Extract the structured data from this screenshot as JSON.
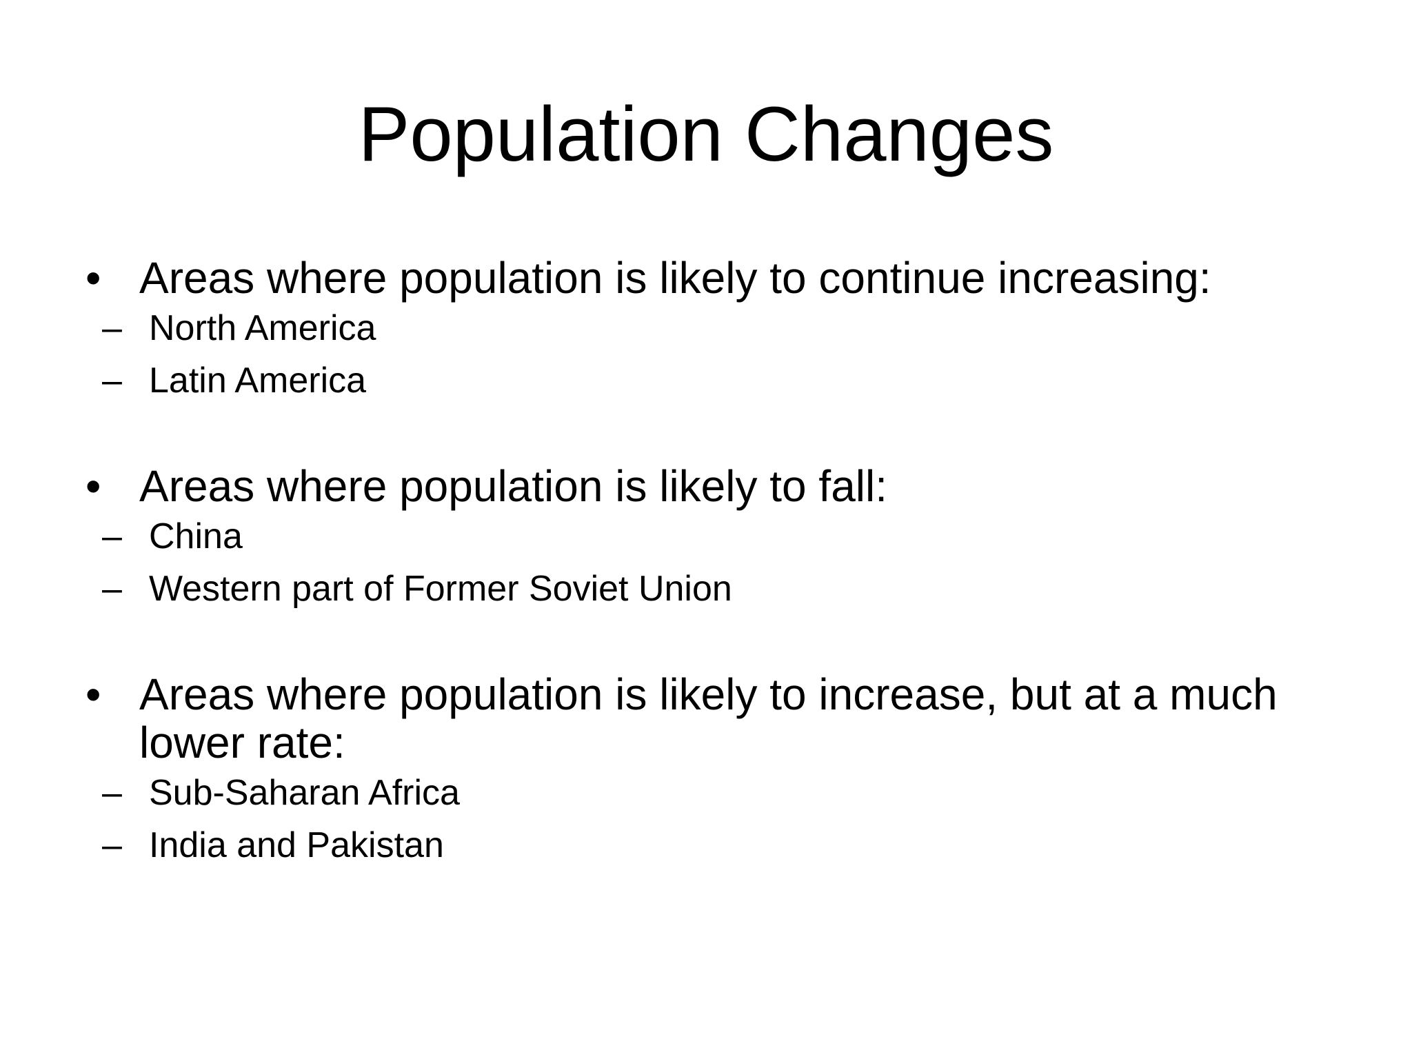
{
  "slide": {
    "title": "Population Changes",
    "bullets": [
      {
        "text": "Areas where population is likely to continue increasing:",
        "sub": [
          "North America",
          "Latin America"
        ]
      },
      {
        "text": "Areas where population is likely to fall:",
        "sub": [
          "China",
          "Western part of Former Soviet Union"
        ]
      },
      {
        "text": "Areas where population is likely to increase, but at a much lower rate:",
        "sub": [
          "Sub-Saharan Africa",
          "India and Pakistan"
        ]
      }
    ],
    "bullet_glyph": "•",
    "sub_glyph": "–"
  }
}
